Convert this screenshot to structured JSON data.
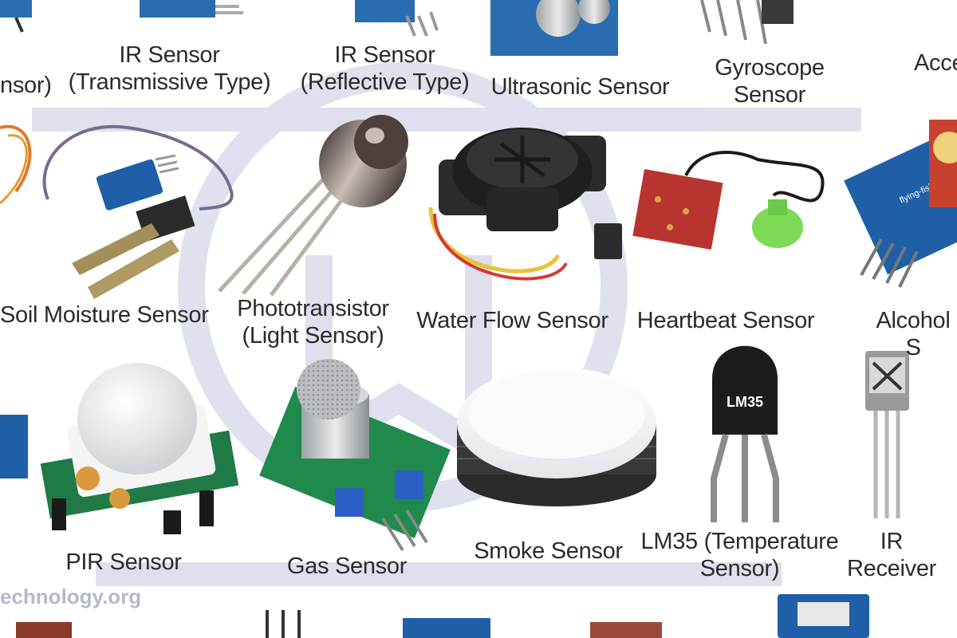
{
  "labels": {
    "sensor_partial": "nsor)",
    "ir_transmissive": "IR Sensor\n(Transmissive Type)",
    "ir_reflective": "IR Sensor\n(Reflective Type)",
    "ultrasonic": "Ultrasonic Sensor",
    "gyroscope": "Gyroscope\nSensor",
    "accelerometer_partial": "Acce",
    "soil_moisture": "Soil Moisture Sensor",
    "phototransistor": "Phototransistor\n(Light Sensor)",
    "water_flow": "Water Flow Sensor",
    "heartbeat": "Heartbeat Sensor",
    "alcohol_partial": "Alcohol S",
    "pir": "PIR Sensor",
    "gas": "Gas Sensor",
    "smoke": "Smoke Sensor",
    "lm35": "LM35 (Temperature\nSensor)",
    "ir_receiver": "IR\nReceiver"
  },
  "chip_marking": "LM35",
  "module_marking": "flying-fish",
  "watermark": "echnology.org",
  "colors": {
    "watermark_logo": "#8c93bf",
    "pcb_blue": "#1f5fa8",
    "pcb_green": "#1f8a4c",
    "pcb_red": "#b8352f",
    "heartbeat_clip": "#7ed957",
    "label_text": "#2b2b2b"
  }
}
